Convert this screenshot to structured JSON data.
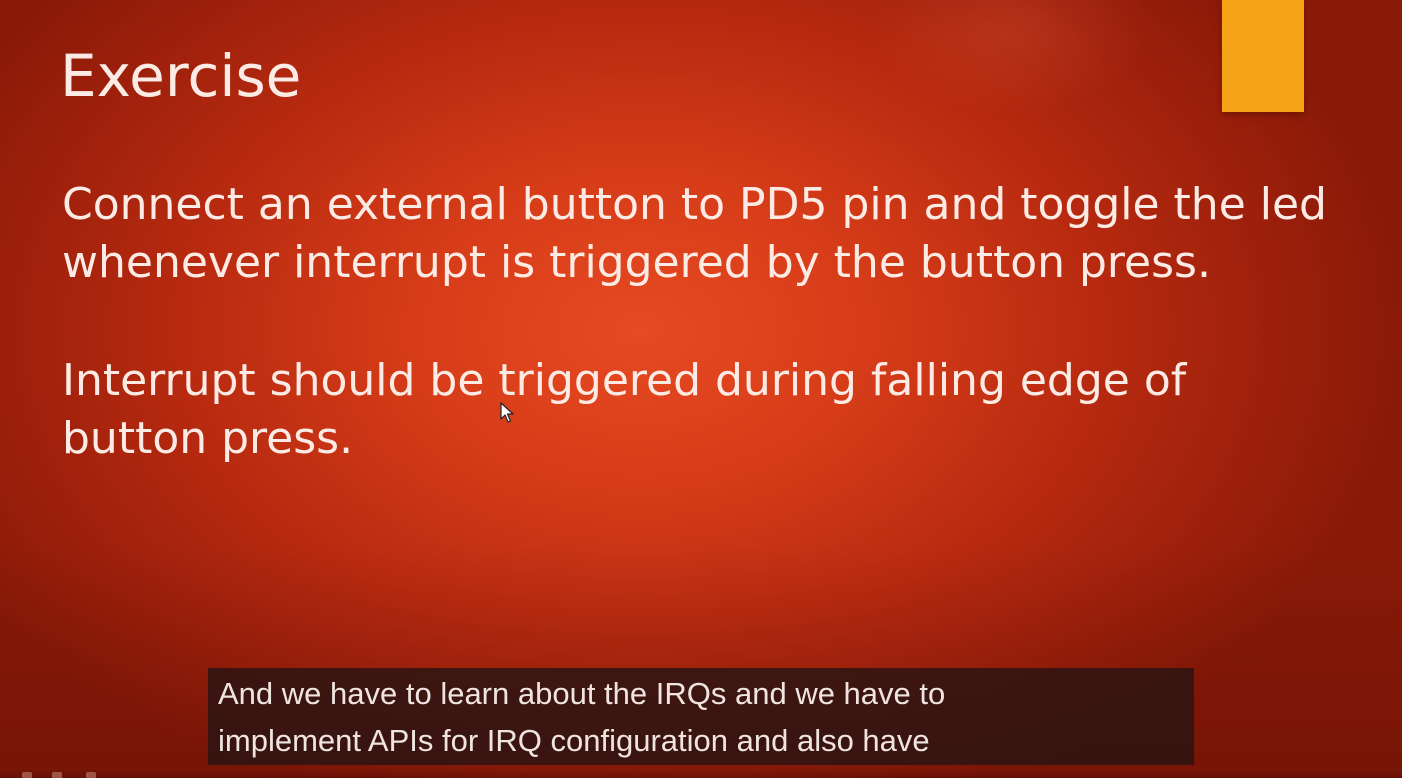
{
  "slide": {
    "title": "Exercise",
    "paragraphs": [
      "Connect an external button to PD5 pin and toggle the led whenever  interrupt is triggered by the button press.",
      "Interrupt should be triggered during falling edge of button press."
    ],
    "accent_color": "#f4a416"
  },
  "caption": {
    "line_1": "And we have to learn about the IRQs and we have to",
    "line_2": "implement APIs for IRQ configuration and also have"
  },
  "icons": {
    "cursor": "mouse-pointer-icon",
    "controls": [
      "slide-prev-icon",
      "slide-menu-icon",
      "slide-pen-icon"
    ]
  }
}
